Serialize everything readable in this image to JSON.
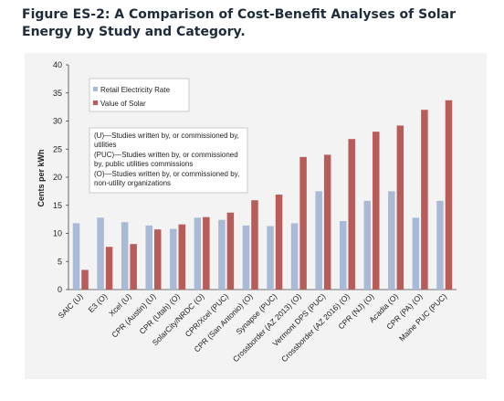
{
  "figure": {
    "title": "Figure ES-2: A Comparison of Cost-Benefit Analyses of Solar Energy by Study and Category."
  },
  "colors": {
    "retail": "#a9bad6",
    "solar": "#b85c5a",
    "background": "#f3f3f3"
  },
  "notes": [
    "(U)—Studies written by, or commissioned by,",
    "utilities",
    "(PUC)—Studies written by, or commissioned",
    "by, public utilities commissions",
    "(O)—Studies written by, or commissioned by,",
    "non-utility organizations"
  ],
  "chart_data": {
    "type": "bar",
    "title": "Figure ES-2: A Comparison of Cost-Benefit Analyses of Solar Energy by Study and Category.",
    "xlabel": "",
    "ylabel": "Cents per kWh",
    "ylim": [
      0,
      40
    ],
    "yticks": [
      "0",
      "5",
      "10",
      "15",
      "20",
      "25",
      "30",
      "35",
      "40"
    ],
    "grid": false,
    "legend_position": "top-left",
    "categories": [
      "SAIC (U)",
      "E3 (O)",
      "Xcel (U)",
      "CPR (Austin) (U)",
      "CPR (Utah) (O)",
      "SolarCity/NRDC (O)",
      "CPR/Xcel (PUC)",
      "CPR (San Antonio) (O)",
      "Synapse (PUC)",
      "Crossborder (AZ 2013) (O)",
      "Vermont DPS (PUC)",
      "Crossborder (AZ 2016) (O)",
      "CPR (NJ) (O)",
      "Acadia (O)",
      "CPR (PA) (O)",
      "Maine PUC (PUC)"
    ],
    "series": [
      {
        "name": "Retail Electricity Rate",
        "color": "#a9bad6",
        "values": [
          11.8,
          12.8,
          12.0,
          11.4,
          10.8,
          12.8,
          12.4,
          11.4,
          11.3,
          11.8,
          17.5,
          12.2,
          15.8,
          17.5,
          12.8,
          15.8
        ]
      },
      {
        "name": "Value of Solar",
        "color": "#b85c5a",
        "values": [
          3.5,
          7.6,
          8.1,
          10.7,
          11.6,
          12.9,
          13.7,
          15.9,
          16.9,
          23.6,
          24.0,
          26.8,
          28.1,
          29.2,
          32.0,
          33.7
        ]
      }
    ]
  }
}
